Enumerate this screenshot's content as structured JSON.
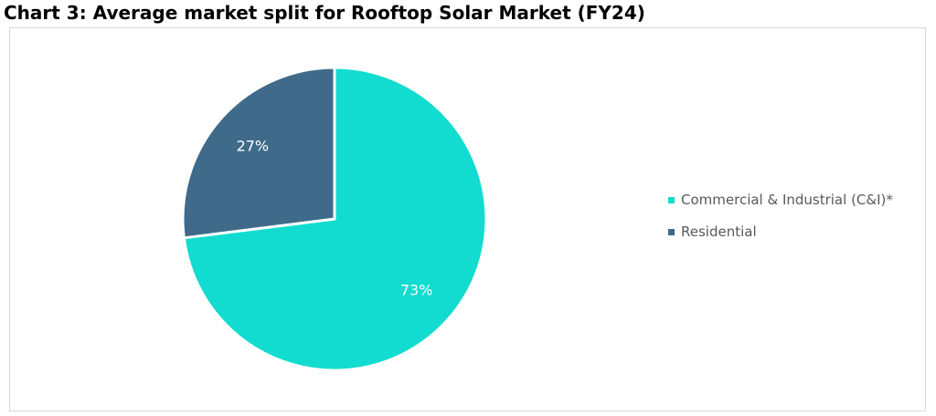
{
  "chart_title": "Chart 3: Average market split for Rooftop Solar Market (FY24)",
  "chart_data": {
    "type": "pie",
    "title": "Chart 3: Average market split for Rooftop Solar Market (FY24)",
    "slices": [
      {
        "label": "Commercial & Industrial (C&I)*",
        "value": 73,
        "data_label": "73%",
        "color": "#12dccf"
      },
      {
        "label": "Residential",
        "value": 27,
        "data_label": "27%",
        "color": "#3f6a8a"
      }
    ],
    "legend_position": "right",
    "data_label_color": "#ffffff"
  },
  "legend": {
    "items": [
      {
        "label": "Commercial & Industrial (C&I)*",
        "color": "#12dccf"
      },
      {
        "label": "Residential",
        "color": "#3f6a8a"
      }
    ]
  }
}
